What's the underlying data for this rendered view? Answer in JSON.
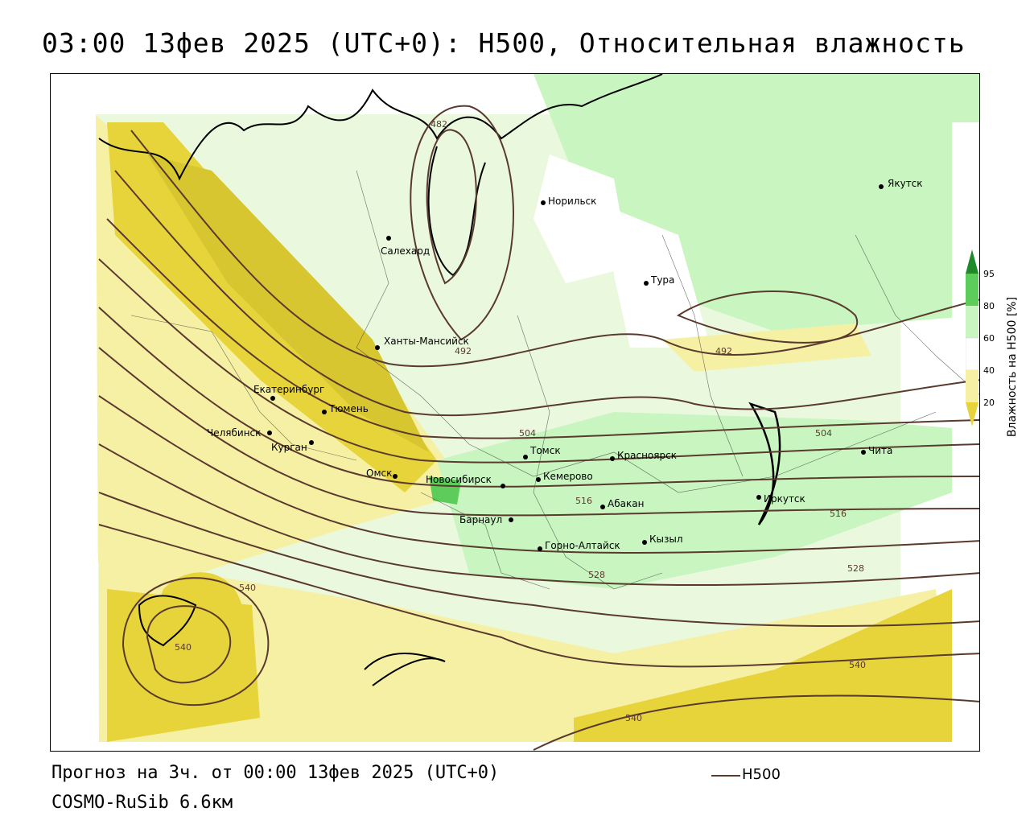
{
  "title": "03:00 13фев 2025 (UTC+0): H500, Относительная влажность",
  "footer": {
    "forecast": "Прогноз на 3ч. от 00:00 13фев 2025 (UTC+0)",
    "model": "COSMO-RuSib 6.6км"
  },
  "legend": {
    "h500_label": "H500",
    "h500_color": "#5a3a2e"
  },
  "colorbar": {
    "label": "Влажность на H500 [%]",
    "ticks": [
      "95",
      "80",
      "60",
      "40",
      "20"
    ],
    "colors": {
      "c95": "#1f8a2a",
      "c80": "#5ccd5a",
      "c60": "#c8f5c0",
      "c40": "#ffffff",
      "c20": "#f6f0a4",
      "c0": "#e6d43a"
    }
  },
  "cities": {
    "yakutsk": "Якутск",
    "norilsk": "Норильск",
    "salekhard": "Салехард",
    "tura": "Тура",
    "khanty": "Ханты-Мансийск",
    "ekb": "Екатеринбург",
    "tyumen": "Тюмень",
    "chelyabinsk": "Челябинск",
    "kurgan": "Курган",
    "omsk": "Омск",
    "tomsk": "Томск",
    "krasnoyarsk": "Красноярск",
    "novosibirsk": "Новосибирск",
    "kemerovo": "Кемерово",
    "abakan": "Абакан",
    "barnaul": "Барнаул",
    "kyzyl": "Кызыл",
    "gorno": "Горно-Алтайск",
    "irkutsk": "Иркутск",
    "chita": "Чита"
  },
  "isolines": {
    "l482": "482",
    "l492a": "492",
    "l492b": "492",
    "l504a": "504",
    "l504b": "504",
    "l516a": "516",
    "l516b": "516",
    "l528a": "528",
    "l528b": "528",
    "l540a": "540",
    "l540b": "540",
    "l540c": "540",
    "l540d": "540"
  }
}
